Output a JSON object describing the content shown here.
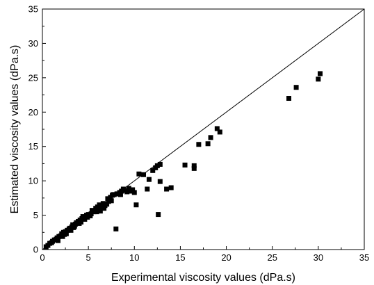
{
  "chart_data": {
    "type": "scatter",
    "xlabel": "Experimental viscosity values (dPa.s)",
    "ylabel": "Estimated viscosity values (dPa.s)",
    "xlim": [
      0,
      35
    ],
    "ylim": [
      0,
      35
    ],
    "x_ticks": [
      "0",
      "5",
      "10",
      "15",
      "20",
      "25",
      "30",
      "35"
    ],
    "y_ticks": [
      "0",
      "5",
      "10",
      "15",
      "20",
      "25",
      "30",
      "35"
    ],
    "reference_line": {
      "from": [
        0,
        0
      ],
      "to": [
        35,
        35
      ],
      "label": ""
    },
    "marker": "filled-square",
    "marker_color": "#000000",
    "grid": false,
    "series": [
      {
        "points": [
          [
            0.4,
            0.4
          ],
          [
            0.6,
            0.6
          ],
          [
            0.8,
            0.9
          ],
          [
            1.0,
            1.0
          ],
          [
            1.1,
            1.2
          ],
          [
            1.3,
            1.4
          ],
          [
            1.5,
            1.5
          ],
          [
            1.6,
            1.7
          ],
          [
            1.8,
            1.9
          ],
          [
            2.0,
            2.0
          ],
          [
            2.1,
            2.3
          ],
          [
            2.2,
            1.9
          ],
          [
            2.3,
            2.5
          ],
          [
            2.5,
            2.6
          ],
          [
            2.6,
            2.3
          ],
          [
            2.7,
            2.8
          ],
          [
            2.9,
            3.0
          ],
          [
            3.0,
            3.1
          ],
          [
            3.2,
            3.3
          ],
          [
            3.3,
            3.6
          ],
          [
            3.4,
            3.2
          ],
          [
            3.6,
            3.7
          ],
          [
            3.7,
            3.9
          ],
          [
            3.9,
            4.1
          ],
          [
            4.0,
            3.8
          ],
          [
            4.1,
            4.3
          ],
          [
            4.3,
            4.5
          ],
          [
            4.5,
            4.6
          ],
          [
            4.6,
            4.4
          ],
          [
            4.8,
            5.0
          ],
          [
            5.0,
            5.1
          ],
          [
            5.2,
            4.9
          ],
          [
            5.4,
            5.7
          ],
          [
            5.6,
            5.5
          ],
          [
            5.8,
            6.0
          ],
          [
            6.0,
            6.2
          ],
          [
            6.2,
            6.5
          ],
          [
            6.4,
            6.1
          ],
          [
            6.6,
            6.7
          ],
          [
            6.8,
            6.4
          ],
          [
            7.0,
            6.6
          ],
          [
            7.2,
            7.0
          ],
          [
            7.4,
            7.6
          ],
          [
            7.6,
            7.9
          ],
          [
            7.8,
            8.0
          ],
          [
            8.0,
            3.0
          ],
          [
            8.2,
            8.1
          ],
          [
            8.4,
            8.3
          ],
          [
            8.6,
            8.5
          ],
          [
            8.8,
            8.8
          ],
          [
            9.0,
            8.6
          ],
          [
            9.2,
            8.4
          ],
          [
            9.4,
            8.9
          ],
          [
            9.6,
            8.5
          ],
          [
            9.8,
            8.7
          ],
          [
            10.0,
            8.3
          ],
          [
            10.2,
            6.5
          ],
          [
            10.5,
            11.0
          ],
          [
            11.0,
            10.9
          ],
          [
            11.4,
            8.8
          ],
          [
            11.6,
            10.2
          ],
          [
            12.0,
            11.5
          ],
          [
            12.3,
            11.9
          ],
          [
            12.5,
            12.2
          ],
          [
            12.6,
            5.1
          ],
          [
            12.8,
            12.4
          ],
          [
            12.8,
            9.9
          ],
          [
            13.5,
            8.8
          ],
          [
            14.0,
            9.0
          ],
          [
            15.5,
            12.3
          ],
          [
            16.5,
            12.2
          ],
          [
            16.5,
            11.8
          ],
          [
            17.0,
            15.3
          ],
          [
            18.0,
            15.4
          ],
          [
            18.3,
            16.3
          ],
          [
            19.0,
            17.6
          ],
          [
            19.3,
            17.1
          ],
          [
            26.8,
            22.0
          ],
          [
            27.6,
            23.6
          ],
          [
            30.0,
            24.8
          ],
          [
            30.2,
            25.6
          ],
          [
            1.7,
            1.3
          ],
          [
            2.4,
            2.2
          ],
          [
            3.1,
            2.8
          ],
          [
            3.5,
            3.4
          ],
          [
            4.2,
            4.0
          ],
          [
            4.4,
            4.8
          ],
          [
            4.9,
            4.7
          ],
          [
            5.3,
            5.2
          ],
          [
            5.9,
            5.5
          ],
          [
            6.1,
            5.8
          ],
          [
            6.3,
            5.6
          ],
          [
            6.7,
            6.0
          ],
          [
            7.1,
            7.4
          ],
          [
            7.5,
            7.1
          ],
          [
            7.7,
            8.0
          ],
          [
            8.1,
            8.1
          ],
          [
            8.5,
            8.0
          ]
        ]
      }
    ]
  }
}
